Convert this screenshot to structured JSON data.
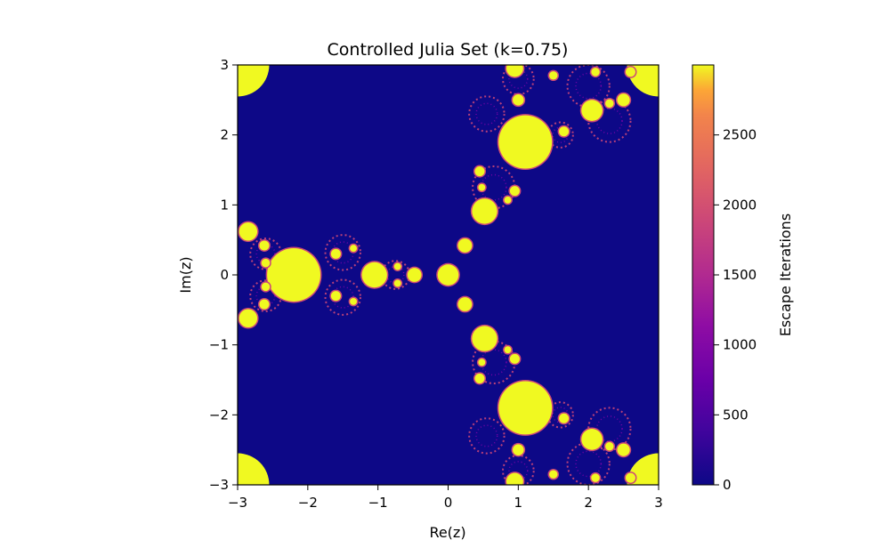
{
  "chart_data": {
    "type": "heatmap",
    "title": "Controlled Julia Set (k=0.75)",
    "xlabel": "Re(z)",
    "ylabel": "Im(z)",
    "xlim": [
      -3,
      3
    ],
    "ylim": [
      -3,
      3
    ],
    "xticks": [
      "−3",
      "−2",
      "−1",
      "0",
      "1",
      "2",
      "3"
    ],
    "yticks": [
      "−3",
      "−2",
      "−1",
      "0",
      "1",
      "2",
      "3"
    ],
    "colormap": "plasma",
    "colorbar": {
      "label": "Escape Iterations",
      "range": [
        0,
        3000
      ],
      "ticks": [
        "0",
        "500",
        "1000",
        "1500",
        "2000",
        "2500"
      ],
      "tick_values": [
        0,
        500,
        1000,
        1500,
        2000,
        2500
      ]
    },
    "background_value": 0,
    "set_value": 3000,
    "filled_regions": [
      {
        "cx": 0.0,
        "cy": 0.0,
        "r": 0.15
      },
      {
        "cx": -0.48,
        "cy": 0.0,
        "r": 0.1
      },
      {
        "cx": -1.05,
        "cy": 0.0,
        "r": 0.18
      },
      {
        "cx": -2.2,
        "cy": 0.0,
        "r": 0.38
      },
      {
        "cx": 0.24,
        "cy": 0.42,
        "r": 0.1
      },
      {
        "cx": 0.52,
        "cy": 0.91,
        "r": 0.18
      },
      {
        "cx": 1.1,
        "cy": 1.9,
        "r": 0.38
      },
      {
        "cx": 0.24,
        "cy": -0.42,
        "r": 0.1
      },
      {
        "cx": 0.52,
        "cy": -0.91,
        "r": 0.18
      },
      {
        "cx": 1.1,
        "cy": -1.9,
        "r": 0.38
      },
      {
        "cx": -2.85,
        "cy": 0.62,
        "r": 0.13
      },
      {
        "cx": -2.85,
        "cy": -0.62,
        "r": 0.13
      },
      {
        "cx": -2.62,
        "cy": 0.42,
        "r": 0.07
      },
      {
        "cx": -2.62,
        "cy": -0.42,
        "r": 0.07
      },
      {
        "cx": -2.6,
        "cy": 0.17,
        "r": 0.06
      },
      {
        "cx": -2.6,
        "cy": -0.17,
        "r": 0.06
      },
      {
        "cx": -1.6,
        "cy": 0.3,
        "r": 0.07
      },
      {
        "cx": -1.6,
        "cy": -0.3,
        "r": 0.07
      },
      {
        "cx": -1.35,
        "cy": 0.38,
        "r": 0.05
      },
      {
        "cx": -1.35,
        "cy": -0.38,
        "r": 0.05
      },
      {
        "cx": -0.72,
        "cy": 0.12,
        "r": 0.05
      },
      {
        "cx": -0.72,
        "cy": -0.12,
        "r": 0.05
      },
      {
        "cx": 0.85,
        "cy": 1.07,
        "r": 0.05
      },
      {
        "cx": 0.85,
        "cy": -1.07,
        "r": 0.05
      },
      {
        "cx": 0.45,
        "cy": 1.48,
        "r": 0.07
      },
      {
        "cx": 0.45,
        "cy": -1.48,
        "r": 0.07
      },
      {
        "cx": 0.95,
        "cy": 1.2,
        "r": 0.07
      },
      {
        "cx": 0.95,
        "cy": -1.2,
        "r": 0.07
      },
      {
        "cx": 0.48,
        "cy": 1.25,
        "r": 0.05
      },
      {
        "cx": 0.48,
        "cy": -1.25,
        "r": 0.05
      },
      {
        "cx": 1.0,
        "cy": 2.5,
        "r": 0.08
      },
      {
        "cx": 1.0,
        "cy": -2.5,
        "r": 0.08
      },
      {
        "cx": 0.95,
        "cy": 2.95,
        "r": 0.12
      },
      {
        "cx": 0.95,
        "cy": -2.95,
        "r": 0.12
      },
      {
        "cx": 1.65,
        "cy": 2.05,
        "r": 0.07
      },
      {
        "cx": 1.65,
        "cy": -2.05,
        "r": 0.07
      },
      {
        "cx": 2.05,
        "cy": 2.35,
        "r": 0.15
      },
      {
        "cx": 2.05,
        "cy": -2.35,
        "r": 0.15
      },
      {
        "cx": 2.5,
        "cy": 2.5,
        "r": 0.09
      },
      {
        "cx": 2.5,
        "cy": -2.5,
        "r": 0.09
      },
      {
        "cx": 2.6,
        "cy": 2.9,
        "r": 0.07
      },
      {
        "cx": 2.6,
        "cy": -2.9,
        "r": 0.07
      },
      {
        "cx": 1.5,
        "cy": 2.85,
        "r": 0.06
      },
      {
        "cx": 1.5,
        "cy": -2.85,
        "r": 0.06
      },
      {
        "cx": 2.1,
        "cy": 2.9,
        "r": 0.06
      },
      {
        "cx": 2.1,
        "cy": -2.9,
        "r": 0.06
      },
      {
        "cx": 2.3,
        "cy": 2.45,
        "r": 0.06
      },
      {
        "cx": 2.3,
        "cy": -2.45,
        "r": 0.06
      }
    ],
    "fringe_regions": [
      {
        "cx": -2.6,
        "cy": 0.3,
        "r": 0.22
      },
      {
        "cx": -2.6,
        "cy": -0.3,
        "r": 0.22
      },
      {
        "cx": -1.5,
        "cy": 0.32,
        "r": 0.25
      },
      {
        "cx": -1.5,
        "cy": -0.32,
        "r": 0.25
      },
      {
        "cx": -0.75,
        "cy": 0.0,
        "r": 0.2
      },
      {
        "cx": 0.65,
        "cy": 1.25,
        "r": 0.3
      },
      {
        "cx": 0.65,
        "cy": -1.25,
        "r": 0.3
      },
      {
        "cx": 0.55,
        "cy": 2.3,
        "r": 0.25
      },
      {
        "cx": 0.55,
        "cy": -2.3,
        "r": 0.25
      },
      {
        "cx": 1.0,
        "cy": 2.8,
        "r": 0.22
      },
      {
        "cx": 1.0,
        "cy": -2.8,
        "r": 0.22
      },
      {
        "cx": 2.0,
        "cy": 2.7,
        "r": 0.3
      },
      {
        "cx": 2.0,
        "cy": -2.7,
        "r": 0.3
      },
      {
        "cx": 2.3,
        "cy": 2.2,
        "r": 0.3
      },
      {
        "cx": 2.3,
        "cy": -2.2,
        "r": 0.3
      },
      {
        "cx": 1.6,
        "cy": 2.0,
        "r": 0.18
      },
      {
        "cx": 1.6,
        "cy": -2.0,
        "r": 0.18
      }
    ],
    "corner_regions": [
      {
        "x": -3,
        "y": 3
      },
      {
        "x": 3,
        "y": 3
      },
      {
        "x": -3,
        "y": -3
      },
      {
        "x": 3,
        "y": -3
      }
    ],
    "colors": {
      "background": "#0d0887",
      "set": "#f0f921",
      "fringe": "#cc4778",
      "fringe_dark": "#7e03a8"
    },
    "grid": false
  }
}
